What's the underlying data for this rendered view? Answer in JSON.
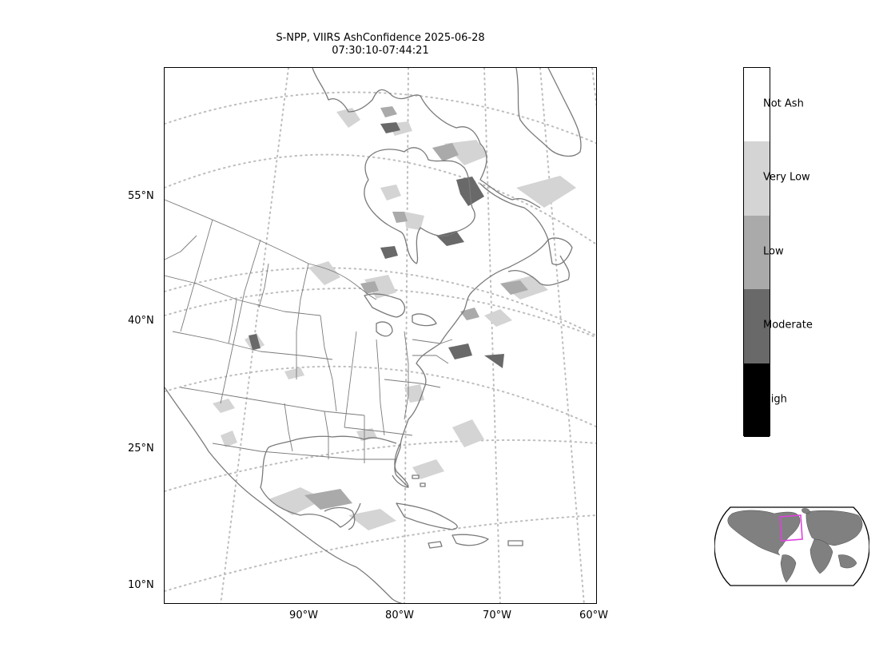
{
  "title": {
    "line1": "S-NPP, VIIRS AshConfidence 2025-06-28",
    "line2": "07:30:10-07:44:21"
  },
  "map": {
    "projection_note": "conic",
    "lat_labels": [
      "55°N",
      "40°N",
      "25°N",
      "10°N"
    ],
    "lon_labels": [
      "90°W",
      "80°W",
      "70°W",
      "60°W"
    ],
    "gridline_style": "dotted",
    "gridline_color": "#bdbdbd",
    "coastline_color": "#7a7a7a"
  },
  "legend": {
    "categories": [
      {
        "label": "Not Ash",
        "color": "#ffffff"
      },
      {
        "label": "Very Low",
        "color": "#d4d4d4"
      },
      {
        "label": "Low",
        "color": "#aaaaaa"
      },
      {
        "label": "Moderate",
        "color": "#696969"
      },
      {
        "label": "High",
        "color": "#000000"
      }
    ]
  },
  "inset": {
    "land_color": "#808080",
    "region_box_color": "#e040e0"
  }
}
